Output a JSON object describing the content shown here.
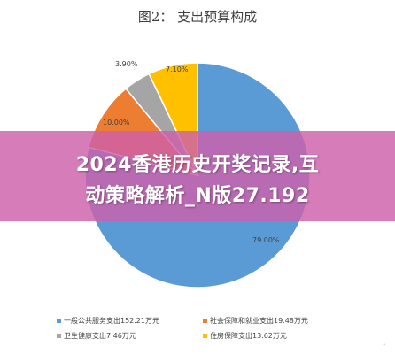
{
  "chart_data": {
    "type": "pie",
    "title": "图2： 支出预算构成",
    "slices": [
      {
        "name": "一般公共服务支出152.21万元",
        "value": 79.0,
        "label": "79.00%",
        "color": "#5b9bd5"
      },
      {
        "name": "社会保障和就业支出19.48万元",
        "value": 10.0,
        "label": "10.00%",
        "color": "#ed7d31"
      },
      {
        "name": "卫生健康支出7.46万元",
        "value": 3.9,
        "label": "3.90%",
        "color": "#a5a5a5"
      },
      {
        "name": "住房保障支出13.62万元",
        "value": 7.1,
        "label": "7.10%",
        "color": "#ffc000"
      }
    ],
    "legend_position": "bottom"
  },
  "banner": {
    "line1": "2024香港历史开奖记录,互",
    "line2": "动策略解析_N版27.192"
  }
}
